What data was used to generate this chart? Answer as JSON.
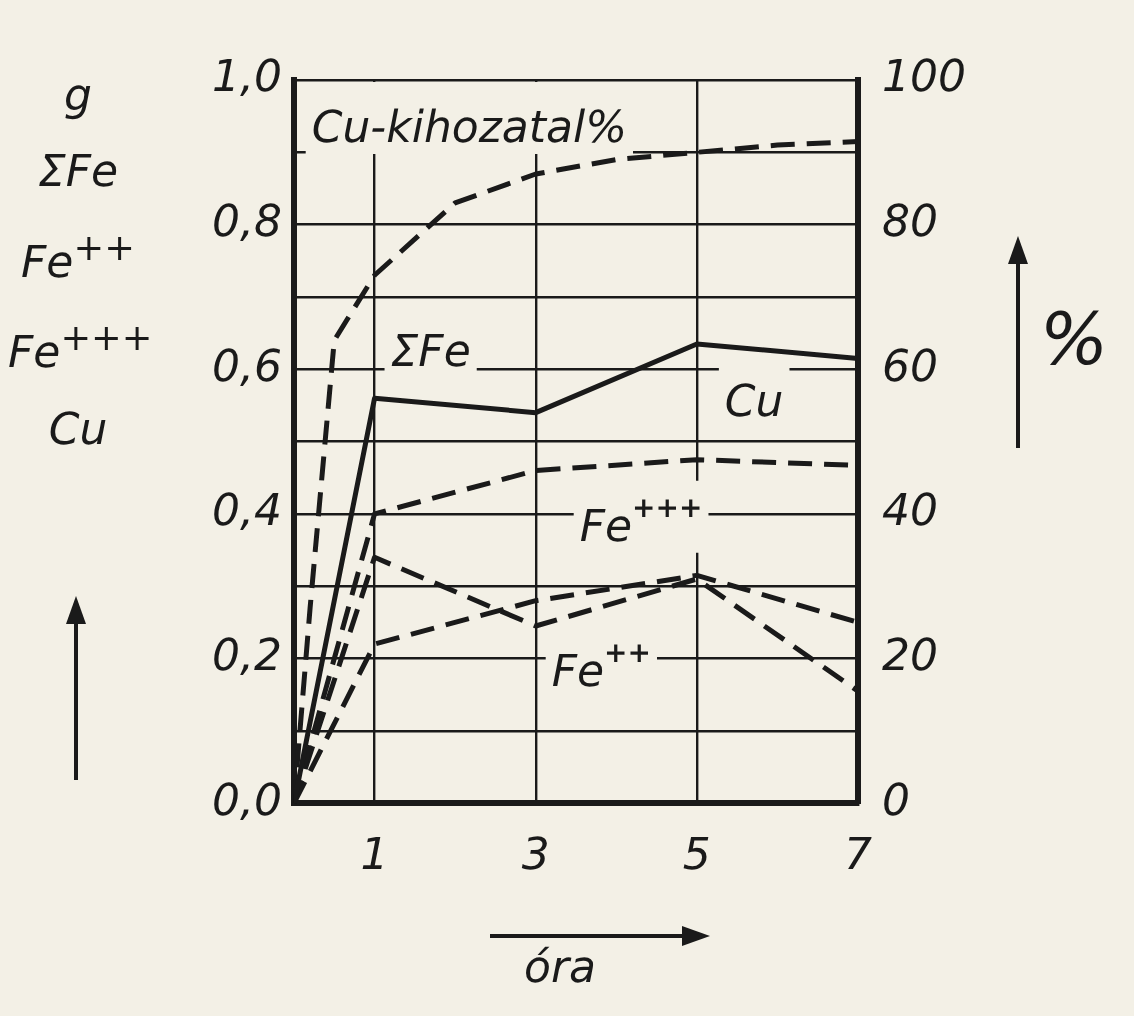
{
  "chart_data": {
    "type": "line",
    "xlabel": "óra",
    "ylabel": "g\nΣFe\nFe$^{++}$\nFe$^{+++}$\nCu",
    "y2label": "%",
    "x": [
      0,
      1,
      3,
      5,
      7
    ],
    "series": [
      {
        "name": "ΣFe",
        "color": "#1a1a1a",
        "line_style": "solid",
        "values": [
          0,
          0.56,
          0.54,
          0.635,
          0.615
        ]
      },
      {
        "name": "Cu",
        "color": "#1a1a1a",
        "line_style": "dashed",
        "values": [
          0,
          0.4,
          0.46,
          0.475,
          0.467
        ]
      },
      {
        "name": "Fe$^{+++}$",
        "color": "#1a1a1a",
        "line_style": "dashed",
        "values": [
          0,
          0.22,
          0.28,
          0.315,
          0.25
        ]
      },
      {
        "name": "Fe$^{++}$",
        "color": "#1a1a1a",
        "line_style": "dashed",
        "values": [
          0,
          0.34,
          0.245,
          0.31,
          0.155
        ]
      },
      {
        "name": "Cu-kihozatal%",
        "color": "#1a1a1a",
        "line_style": "dashed",
        "axis": "y2",
        "x": [
          0,
          0.2,
          0.5,
          1,
          2,
          3,
          4,
          5,
          6,
          7
        ],
        "values": [
          0,
          27,
          64,
          73,
          83,
          87,
          89,
          90,
          91,
          91.5
        ]
      }
    ],
    "xlim": [
      0,
      7
    ],
    "xticks": [
      1,
      3,
      5,
      7
    ],
    "ylim": [
      0,
      1
    ],
    "yticks": [
      {
        "value": 0,
        "label": "0,0"
      },
      {
        "value": 0.1,
        "label": null
      },
      {
        "value": 0.2,
        "label": "0,2"
      },
      {
        "value": 0.3,
        "label": null
      },
      {
        "value": 0.4,
        "label": "0,4"
      },
      {
        "value": 0.5,
        "label": null
      },
      {
        "value": 0.6,
        "label": "0,6"
      },
      {
        "value": 0.7,
        "label": null
      },
      {
        "value": 0.8,
        "label": "0,8"
      },
      {
        "value": 0.9,
        "label": null
      },
      {
        "value": 1,
        "label": "1,0"
      }
    ],
    "y2lim": [
      0,
      100
    ],
    "y2ticks": [
      0,
      20,
      40,
      60,
      80,
      100
    ],
    "grid": true,
    "legend": false,
    "marker": "none"
  }
}
